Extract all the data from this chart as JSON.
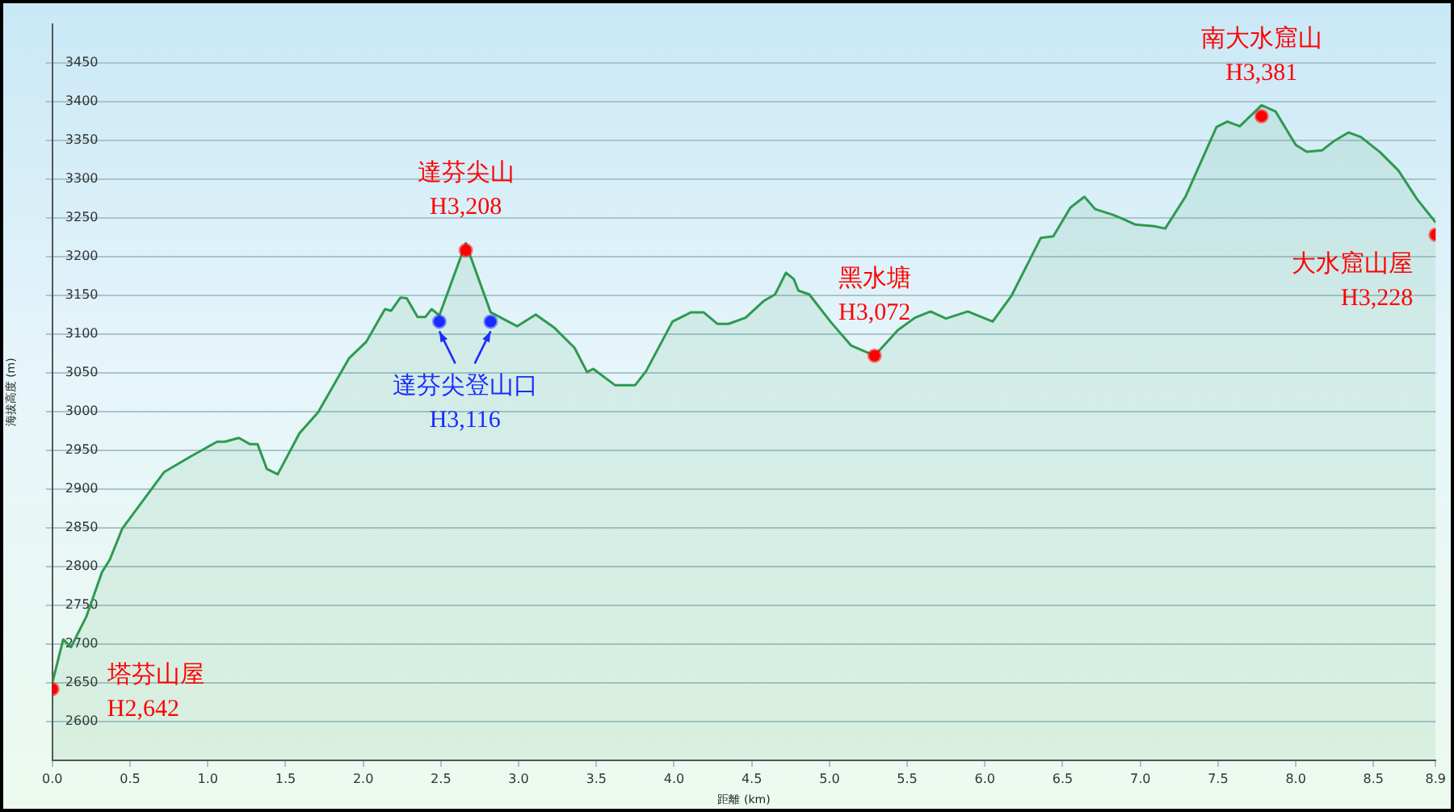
{
  "chart_data": {
    "type": "area",
    "xlabel": "距離 (km)",
    "ylabel": "海拔高度 (m)",
    "xlim": [
      0,
      8.9
    ],
    "xticks": [
      {
        "value": 0,
        "label": "0.0"
      },
      0.5,
      {
        "value": 1,
        "label": "1.0"
      },
      1.5,
      {
        "value": 2,
        "label": "2.0"
      },
      2.5,
      {
        "value": 3,
        "label": "3.0"
      },
      3.5,
      {
        "value": 4,
        "label": "4.0"
      },
      4.5,
      {
        "value": 5,
        "label": "5.0"
      },
      5.5,
      {
        "value": 6,
        "label": "6.0"
      },
      6.5,
      {
        "value": 7,
        "label": "7.0"
      },
      7.5,
      {
        "value": 8,
        "label": "8.0"
      },
      8.5,
      8.9
    ],
    "ylim": [
      2550,
      3500
    ],
    "yticks": [
      2600,
      2650,
      2700,
      2750,
      2800,
      2850,
      2900,
      2950,
      3000,
      3050,
      3100,
      3150,
      3200,
      3250,
      3300,
      3350,
      3400,
      3450
    ],
    "grid": "y",
    "legend": false,
    "series": [
      {
        "color": "#2e9a4e",
        "x": [
          0,
          0.07,
          0.12,
          0.22,
          0.32,
          0.37,
          0.45,
          0.72,
          0.89,
          1.06,
          1.11,
          1.2,
          1.27,
          1.32,
          1.38,
          1.45,
          1.59,
          1.71,
          1.91,
          2.02,
          2.14,
          2.18,
          2.24,
          2.28,
          2.35,
          2.4,
          2.44,
          2.49,
          2.66,
          2.82,
          2.99,
          3.11,
          3.23,
          3.36,
          3.44,
          3.48,
          3.62,
          3.75,
          3.82,
          3.99,
          4.11,
          4.19,
          4.28,
          4.35,
          4.46,
          4.58,
          4.65,
          4.72,
          4.77,
          4.8,
          4.87,
          5.01,
          5.14,
          5.29,
          5.44,
          5.55,
          5.65,
          5.75,
          5.89,
          6.05,
          6.17,
          6.36,
          6.44,
          6.55,
          6.64,
          6.71,
          6.82,
          6.88,
          6.97,
          7.09,
          7.16,
          7.29,
          7.49,
          7.56,
          7.64,
          7.78,
          7.87,
          8,
          8.07,
          8.17,
          8.24,
          8.34,
          8.42,
          8.54,
          8.66,
          8.78,
          8.9
        ],
        "values": [
          2650,
          2706,
          2696,
          2736,
          2793,
          2809,
          2849,
          2922,
          2942,
          2961,
          2961,
          2966,
          2958,
          2958,
          2926,
          2919,
          2972,
          2999,
          3069,
          3090,
          3132,
          3130,
          3147,
          3146,
          3122,
          3122,
          3132,
          3124,
          3217,
          3128,
          3110,
          3125,
          3108,
          3082,
          3051,
          3055,
          3034,
          3034,
          3052,
          3116,
          3128,
          3128,
          3113,
          3113,
          3121,
          3143,
          3151,
          3179,
          3171,
          3156,
          3151,
          3115,
          3085,
          3072,
          3105,
          3121,
          3129,
          3120,
          3129,
          3116,
          3149,
          3224,
          3226,
          3263,
          3277,
          3261,
          3254,
          3249,
          3241,
          3239,
          3236,
          3277,
          3367,
          3374,
          3368,
          3395,
          3387,
          3344,
          3335,
          3337,
          3348,
          3360,
          3354,
          3335,
          3311,
          3274,
          3244
        ]
      },
      {
        "type": "scatter",
        "color": "#ff0000",
        "x": [
          0,
          2.66,
          5.29,
          7.78,
          8.9
        ],
        "values": [
          2642,
          3208,
          3072,
          3381,
          3228
        ]
      },
      {
        "type": "scatter",
        "color": "#1a2cff",
        "x": [
          2.49,
          2.82
        ],
        "values": [
          3116,
          3116
        ]
      }
    ],
    "annotations": [
      {
        "text": "塔芬山屋\nH2,642",
        "x": 0,
        "y": 2642
      },
      {
        "text": "達芬尖山\nH3,208",
        "x": 2.66,
        "y": 3208
      },
      {
        "text": "達芬尖登山口\nH3,116",
        "x": 2.49,
        "y": 3116
      },
      {
        "text": "黑水塘\nH3,072",
        "x": 5.29,
        "y": 3072
      },
      {
        "text": "南大水窟山\nH3,381",
        "x": 7.78,
        "y": 3381
      },
      {
        "text": "大水窟山屋\nH3,228",
        "x": 8.9,
        "y": 3228
      }
    ]
  }
}
